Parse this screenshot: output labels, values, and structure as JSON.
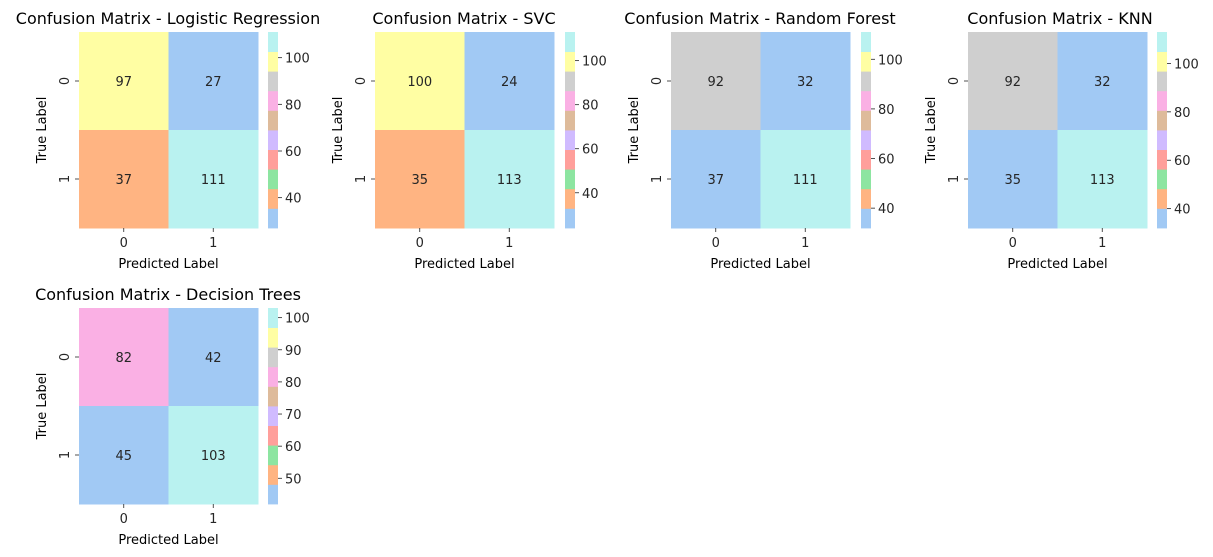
{
  "chart_data": [
    {
      "type": "heatmap",
      "title": "Confusion Matrix - Logistic Regression",
      "xlabel": "Predicted Label",
      "ylabel": "True Label",
      "x_categories": [
        "0",
        "1"
      ],
      "y_categories": [
        "0",
        "1"
      ],
      "values": [
        [
          97,
          27
        ],
        [
          37,
          111
        ]
      ],
      "colorbar": {
        "range": [
          27,
          111
        ],
        "ticks": [
          40,
          60,
          80,
          100
        ]
      }
    },
    {
      "type": "heatmap",
      "title": "Confusion Matrix - SVC",
      "xlabel": "Predicted Label",
      "ylabel": "True Label",
      "x_categories": [
        "0",
        "1"
      ],
      "y_categories": [
        "0",
        "1"
      ],
      "values": [
        [
          100,
          24
        ],
        [
          35,
          113
        ]
      ],
      "colorbar": {
        "range": [
          24,
          113
        ],
        "ticks": [
          40,
          60,
          80,
          100
        ]
      }
    },
    {
      "type": "heatmap",
      "title": "Confusion Matrix - Random Forest",
      "xlabel": "Predicted Label",
      "ylabel": "True Label",
      "x_categories": [
        "0",
        "1"
      ],
      "y_categories": [
        "0",
        "1"
      ],
      "values": [
        [
          92,
          32
        ],
        [
          37,
          111
        ]
      ],
      "colorbar": {
        "range": [
          32,
          111
        ],
        "ticks": [
          40,
          60,
          80,
          100
        ]
      }
    },
    {
      "type": "heatmap",
      "title": "Confusion Matrix - KNN",
      "xlabel": "Predicted Label",
      "ylabel": "True Label",
      "x_categories": [
        "0",
        "1"
      ],
      "y_categories": [
        "0",
        "1"
      ],
      "values": [
        [
          92,
          32
        ],
        [
          35,
          113
        ]
      ],
      "colorbar": {
        "range": [
          32,
          113
        ],
        "ticks": [
          40,
          60,
          80,
          100
        ]
      }
    },
    {
      "type": "heatmap",
      "title": "Confusion Matrix - Decision Trees",
      "xlabel": "Predicted Label",
      "ylabel": "True Label",
      "x_categories": [
        "0",
        "1"
      ],
      "y_categories": [
        "0",
        "1"
      ],
      "values": [
        [
          82,
          42
        ],
        [
          45,
          103
        ]
      ],
      "colorbar": {
        "range": [
          42,
          103
        ],
        "ticks": [
          50,
          60,
          70,
          80,
          90,
          100
        ]
      }
    }
  ],
  "palette": [
    "#a1c9f4",
    "#ffb482",
    "#8de5a1",
    "#ff9f9b",
    "#d0bbff",
    "#debb9b",
    "#fab0e4",
    "#cfcfcf",
    "#fffea3",
    "#b9f2f0"
  ]
}
